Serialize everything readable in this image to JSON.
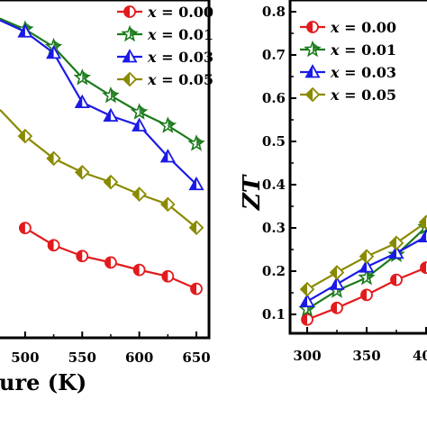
{
  "chart_data": [
    {
      "type": "line",
      "title": "",
      "xlabel": "ure (K)",
      "ylabel": "",
      "xlim": [
        478,
        660
      ],
      "ylim": [
        0,
        1
      ],
      "x_ticks": [
        "500",
        "550",
        "600",
        "650"
      ],
      "y_ticks": [],
      "x": [
        500,
        525,
        550,
        575,
        600,
        625,
        650
      ],
      "legend_position": "top-right",
      "legend_prefix": "x",
      "series": [
        {
          "name": "= 0.00",
          "color": "#e31a1c",
          "marker": "half-circle",
          "values": [
            0.325,
            0.274,
            0.242,
            0.223,
            0.201,
            0.182,
            0.145
          ]
        },
        {
          "name": "= 0.01",
          "color": "#1a7a1a",
          "marker": "star",
          "values": [
            0.913,
            0.861,
            0.77,
            0.717,
            0.668,
            0.628,
            0.575
          ]
        },
        {
          "name": "= 0.03",
          "color": "#1a1ae6",
          "marker": "triangle",
          "values": [
            0.906,
            0.843,
            0.697,
            0.657,
            0.628,
            0.536,
            0.454
          ]
        },
        {
          "name": "= 0.05",
          "color": "#8a8a00",
          "marker": "diamond",
          "values": [
            0.597,
            0.531,
            0.49,
            0.461,
            0.425,
            0.395,
            0.326
          ]
        }
      ],
      "left_partial": {
        "x": 478,
        "values": [
          null,
          0.945,
          0.94,
          0.675
        ]
      }
    },
    {
      "type": "line",
      "title": "",
      "xlabel": "",
      "ylabel": "ZT",
      "xlim": [
        290,
        410
      ],
      "ylim": [
        0.07,
        0.8
      ],
      "x_ticks": [
        "300",
        "350",
        "40"
      ],
      "y_ticks": [
        "0.1",
        "0.2",
        "0.3",
        "0.4",
        "0.5",
        "0.6",
        "0.7",
        "0.8"
      ],
      "x": [
        300,
        325,
        350,
        375,
        400
      ],
      "legend_position": "top-left",
      "legend_prefix": "x",
      "series": [
        {
          "name": "= 0.00",
          "color": "#e31a1c",
          "marker": "half-circle",
          "values": [
            0.088,
            0.115,
            0.145,
            0.18,
            0.208
          ]
        },
        {
          "name": "= 0.01",
          "color": "#1a7a1a",
          "marker": "star",
          "values": [
            0.112,
            0.155,
            0.185,
            0.238,
            0.302
          ]
        },
        {
          "name": "= 0.03",
          "color": "#1a1ae6",
          "marker": "triangle",
          "values": [
            0.13,
            0.17,
            0.21,
            0.242,
            0.28
          ]
        },
        {
          "name": "= 0.05",
          "color": "#8a8a00",
          "marker": "diamond",
          "values": [
            0.158,
            0.197,
            0.234,
            0.265,
            0.313
          ]
        }
      ]
    }
  ]
}
